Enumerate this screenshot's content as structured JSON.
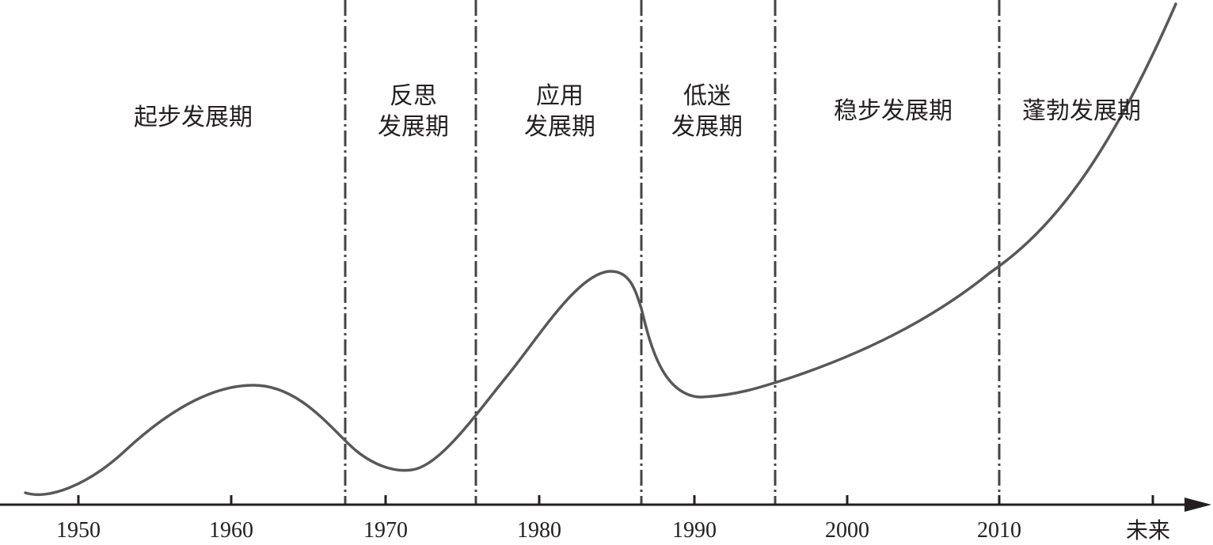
{
  "axis": {
    "tick_labels": [
      "1950",
      "1960",
      "1970",
      "1980",
      "1990",
      "2000",
      "2010"
    ],
    "future_label": "未来"
  },
  "periods": [
    {
      "lines": [
        "起步发展期"
      ]
    },
    {
      "lines": [
        "反思",
        "发展期"
      ]
    },
    {
      "lines": [
        "应用",
        "发展期"
      ]
    },
    {
      "lines": [
        "低迷",
        "发展期"
      ]
    },
    {
      "lines": [
        "稳步发展期"
      ]
    },
    {
      "lines": [
        "蓬勃发展期"
      ]
    }
  ],
  "colors": {
    "curve": "#595757",
    "divider": "#444444",
    "axis": "#231f20",
    "text": "#231f20"
  }
}
